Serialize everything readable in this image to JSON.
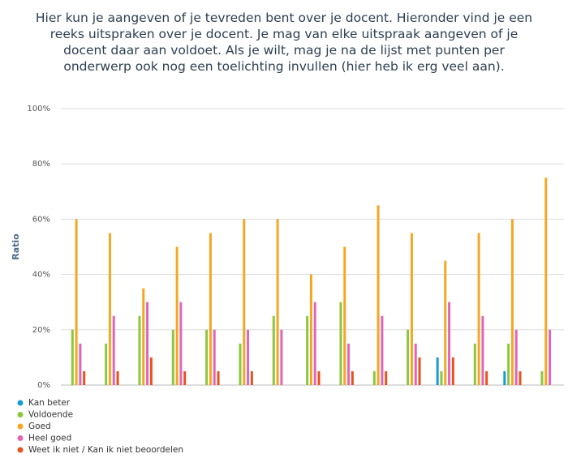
{
  "chart_data": {
    "type": "bar",
    "title": "Hier kun je aangeven of je tevreden bent over je docent. Hieronder vind je een reeks uitspraken over je docent. Je mag van elke uitspraak aangeven of je docent daar aan voldoet. Als je wilt, mag je na de lijst met punten per onderwerp ook nog een toelichting invullen (hier heb ik erg veel aan).",
    "y_label": "Ratio",
    "categories": [
      null,
      null,
      null,
      null,
      null,
      null,
      null,
      null,
      null,
      null,
      null,
      null,
      null,
      null,
      null
    ],
    "series": [
      {
        "name": "Kan beter",
        "color": "#1a9ad6",
        "values": [
          0,
          0,
          0,
          0,
          0,
          0,
          0,
          0,
          0,
          0,
          0,
          10,
          0,
          5,
          0
        ]
      },
      {
        "name": "Voldoende",
        "color": "#8cc63f",
        "values": [
          20,
          15,
          25,
          20,
          20,
          15,
          25,
          25,
          30,
          5,
          20,
          5,
          15,
          15,
          5
        ]
      },
      {
        "name": "Goed",
        "color": "#f5a623",
        "values": [
          60,
          55,
          35,
          50,
          55,
          60,
          60,
          40,
          50,
          65,
          55,
          45,
          55,
          60,
          75
        ]
      },
      {
        "name": "Heel goed",
        "color": "#e066b8",
        "values": [
          15,
          25,
          30,
          30,
          20,
          20,
          20,
          30,
          15,
          25,
          15,
          30,
          25,
          20,
          20
        ]
      },
      {
        "name": "Weet ik niet / Kan ik niet beoordelen",
        "color": "#e8531d",
        "values": [
          5,
          5,
          10,
          5,
          5,
          5,
          0,
          5,
          5,
          5,
          10,
          10,
          5,
          5,
          0
        ]
      }
    ],
    "ylim": [
      0,
      100
    ],
    "yticks": [
      {
        "value": 0,
        "label": "0%"
      },
      {
        "value": 20,
        "label": "20%"
      },
      {
        "value": 40,
        "label": "40%"
      },
      {
        "value": 60,
        "label": "60%"
      },
      {
        "value": 80,
        "label": "80%"
      },
      {
        "value": 100,
        "label": "100%"
      }
    ],
    "grid": true
  }
}
